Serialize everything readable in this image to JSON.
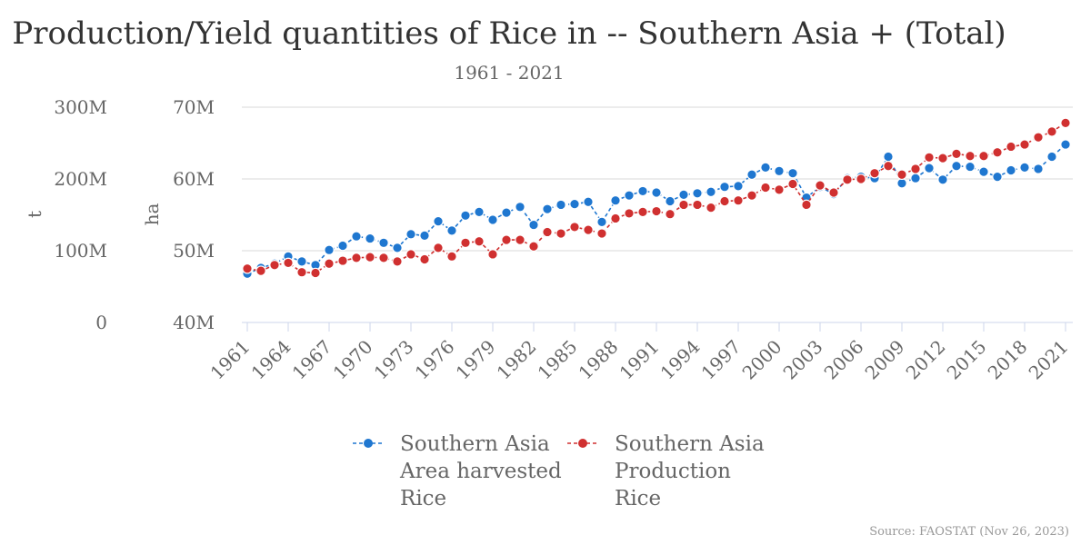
{
  "chart_data": {
    "type": "line",
    "title": "Production/Yield quantities of Rice in -- Southern Asia + (Total)",
    "subtitle": "1961 - 2021",
    "y_axes": [
      {
        "label": "t",
        "range": [
          0,
          300000000
        ],
        "ticks": [
          "0",
          "100M",
          "200M",
          "300M"
        ]
      },
      {
        "label": "ha",
        "range": [
          40000000,
          70000000
        ],
        "ticks": [
          "40M",
          "50M",
          "60M",
          "70M"
        ]
      }
    ],
    "x_tick_labels": [
      "1961",
      "1964",
      "1967",
      "1970",
      "1973",
      "1976",
      "1979",
      "1982",
      "1985",
      "1988",
      "1991",
      "1994",
      "1997",
      "2000",
      "2003",
      "2006",
      "2009",
      "2012",
      "2015",
      "2018",
      "2021"
    ],
    "x": [
      1961,
      1962,
      1963,
      1964,
      1965,
      1966,
      1967,
      1968,
      1969,
      1970,
      1971,
      1972,
      1973,
      1974,
      1975,
      1976,
      1977,
      1978,
      1979,
      1980,
      1981,
      1982,
      1983,
      1984,
      1985,
      1986,
      1987,
      1988,
      1989,
      1990,
      1991,
      1992,
      1993,
      1994,
      1995,
      1996,
      1997,
      1998,
      1999,
      2000,
      2001,
      2002,
      2003,
      2004,
      2005,
      2006,
      2007,
      2008,
      2009,
      2010,
      2011,
      2012,
      2013,
      2014,
      2015,
      2016,
      2017,
      2018,
      2019,
      2020,
      2021
    ],
    "series": [
      {
        "name": "Southern Asia Area harvested Rice",
        "legend_lines": [
          "Southern Asia",
          "Area harvested",
          "Rice"
        ],
        "axis": "ha",
        "color": "#1f77d0",
        "values": [
          46.8,
          47.6,
          48.2,
          49.2,
          48.5,
          48.0,
          50.1,
          50.7,
          52.0,
          51.7,
          51.1,
          50.4,
          52.3,
          52.1,
          54.1,
          52.8,
          54.9,
          55.4,
          54.3,
          55.3,
          56.1,
          53.6,
          55.8,
          56.4,
          56.5,
          56.8,
          54.0,
          57.0,
          57.7,
          58.3,
          58.1,
          56.9,
          57.8,
          58.0,
          58.2,
          58.9,
          59.0,
          60.6,
          61.6,
          61.1,
          60.8,
          57.4,
          58.9,
          57.9,
          60.1,
          60.3,
          60.1,
          63.1,
          59.4,
          60.1,
          61.5,
          59.9,
          61.8,
          61.7,
          61.0,
          60.3,
          61.2,
          61.6,
          61.4,
          63.1,
          64.8
        ]
      },
      {
        "name": "Southern Asia Production Rice",
        "legend_lines": [
          "Southern Asia",
          "Production",
          "Rice"
        ],
        "axis": "t",
        "color": "#d03030",
        "values": [
          75,
          72,
          80,
          83,
          70,
          69,
          82,
          86,
          90,
          91,
          90,
          85,
          95,
          88,
          104,
          92,
          111,
          113,
          95,
          115,
          115,
          106,
          126,
          124,
          133,
          129,
          124,
          145,
          152,
          154,
          155,
          151,
          164,
          164,
          160,
          169,
          170,
          177,
          188,
          185,
          193,
          164,
          191,
          181,
          199,
          200,
          208,
          218,
          206,
          214,
          230,
          229,
          235,
          232,
          232,
          237,
          245,
          248,
          258,
          266,
          278
        ]
      }
    ],
    "legend_position": "bottom",
    "grid": true,
    "credit": "Source: FAOSTAT (Nov 26, 2023)"
  }
}
